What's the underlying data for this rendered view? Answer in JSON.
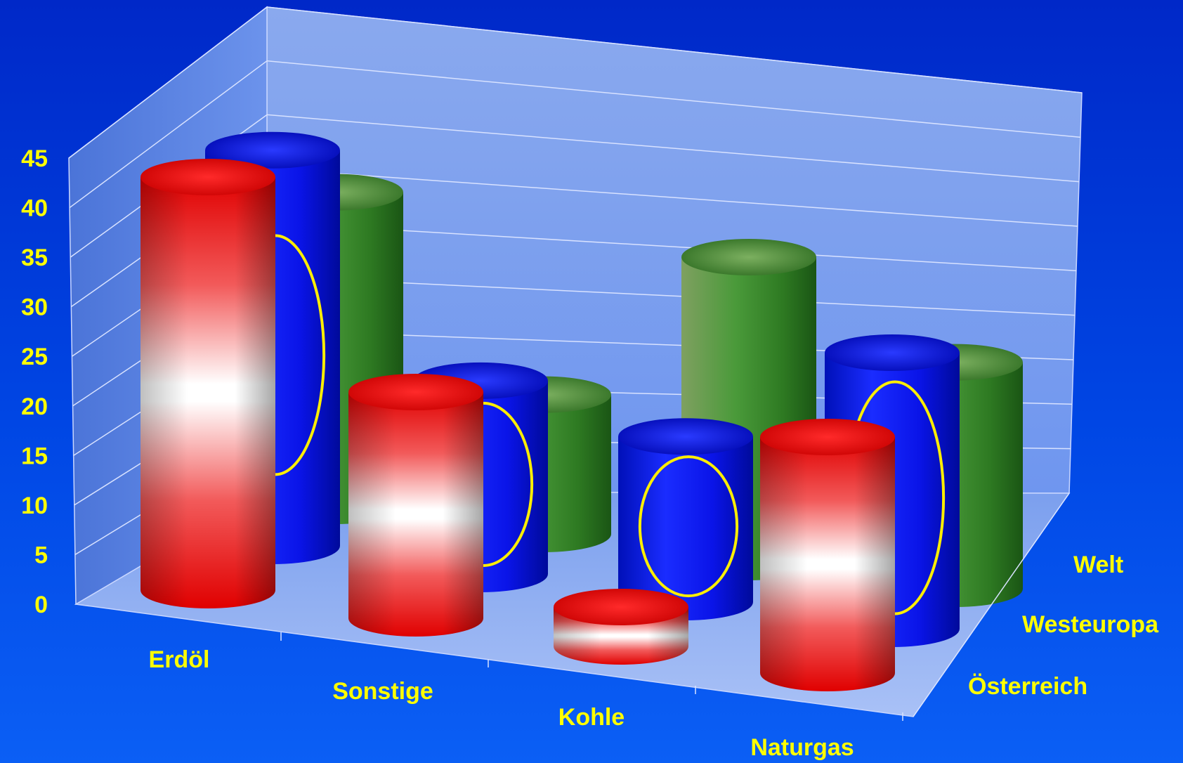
{
  "chart_data": {
    "type": "bar",
    "variant": "3d-cylinder",
    "categories": [
      "Erdöl",
      "Sonstige",
      "Kohle",
      "Naturgas"
    ],
    "series": [
      {
        "name": "Österreich",
        "values": [
          42,
          23,
          4,
          24
        ],
        "color": "#e60000"
      },
      {
        "name": "Westeuropa",
        "values": [
          43,
          21,
          18,
          30
        ],
        "color": "#0000e6"
      },
      {
        "name": "Welt",
        "values": [
          36,
          16,
          35,
          26
        ],
        "color": "#2e8b1e"
      }
    ],
    "y_ticks": [
      "0",
      "5",
      "10",
      "15",
      "20",
      "25",
      "30",
      "35",
      "40",
      "45"
    ],
    "ylim": [
      0,
      45
    ],
    "grid": true,
    "legend": "depth-axis-right",
    "colors": {
      "label": "#ffff00",
      "wall": "#7fa3f0",
      "background": "#0033d6"
    }
  }
}
